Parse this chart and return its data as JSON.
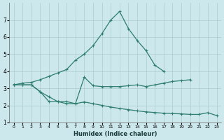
{
  "xlabel": "Humidex (Indice chaleur)",
  "background_color": "#cce8ec",
  "grid_color": "#aacccc",
  "line_color": "#2e7d6e",
  "ylim": [
    1,
    8
  ],
  "xlim": [
    -0.5,
    23.5
  ],
  "yticks": [
    1,
    2,
    3,
    4,
    5,
    6,
    7
  ],
  "xticks": [
    0,
    1,
    2,
    3,
    4,
    5,
    6,
    7,
    8,
    9,
    10,
    11,
    12,
    13,
    14,
    15,
    16,
    17,
    18,
    19,
    20,
    21,
    22,
    23
  ],
  "line1_x": [
    0,
    1,
    2,
    3,
    4,
    5,
    6,
    7,
    8,
    9,
    10,
    11,
    12,
    13,
    14,
    15,
    16,
    17
  ],
  "line1_y": [
    3.2,
    3.3,
    3.35,
    3.5,
    3.7,
    3.9,
    4.1,
    4.65,
    5.0,
    5.5,
    6.2,
    7.0,
    7.5,
    6.5,
    5.8,
    5.2,
    4.35,
    4.0
  ],
  "line2_x": [
    0,
    1,
    2,
    3,
    4,
    5,
    6,
    7,
    8,
    9,
    10,
    11,
    12,
    13,
    14,
    15,
    16,
    17,
    18,
    19,
    20
  ],
  "line2_y": [
    3.2,
    3.2,
    3.2,
    2.8,
    2.5,
    2.22,
    2.22,
    2.1,
    3.65,
    3.15,
    3.1,
    3.1,
    3.1,
    3.15,
    3.2,
    3.1,
    3.2,
    3.3,
    3.4,
    3.45,
    3.5
  ],
  "line3_x": [
    0,
    1,
    2,
    3,
    4,
    5,
    6,
    7,
    8,
    9,
    10,
    11,
    12,
    13,
    14,
    15,
    16,
    17,
    18,
    19,
    20,
    21,
    22,
    23
  ],
  "line3_y": [
    3.2,
    3.2,
    3.2,
    2.8,
    2.22,
    2.22,
    2.1,
    2.1,
    2.2,
    2.1,
    2.0,
    1.9,
    1.82,
    1.75,
    1.68,
    1.62,
    1.58,
    1.54,
    1.52,
    1.5,
    1.47,
    1.47,
    1.57,
    1.4
  ]
}
